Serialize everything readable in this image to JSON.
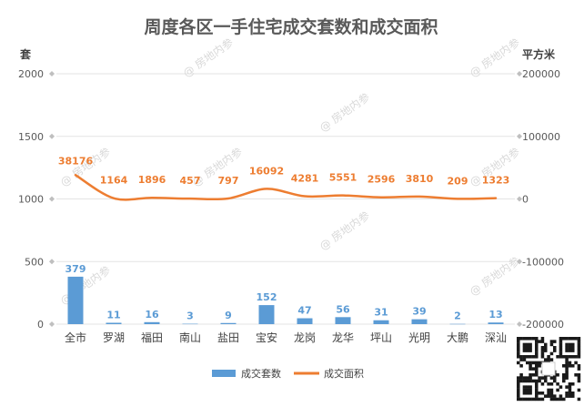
{
  "chart_data": {
    "type": "bar",
    "title": "周度各区一手住宅成交套数和成交面积",
    "categories": [
      "全市",
      "罗湖",
      "福田",
      "南山",
      "盐田",
      "宝安",
      "龙岗",
      "龙华",
      "坪山",
      "光明",
      "大鹏",
      "深汕"
    ],
    "series": [
      {
        "name": "成交套数",
        "type": "bar",
        "axis": "left",
        "color": "#5b9bd5",
        "values": [
          379,
          11,
          16,
          3,
          9,
          152,
          47,
          56,
          31,
          39,
          2,
          13
        ]
      },
      {
        "name": "成交面积",
        "type": "line",
        "axis": "right",
        "color": "#ed7d31",
        "values": [
          38176,
          1164,
          1896,
          457,
          797,
          16092,
          4281,
          5551,
          2596,
          3810,
          209,
          1323
        ]
      }
    ],
    "y_left": {
      "unit": "套",
      "ylim": [
        0,
        2000
      ],
      "ticks": [
        0,
        500,
        1000,
        1500,
        2000
      ]
    },
    "y_right": {
      "unit": "平方米",
      "ylim": [
        -200000,
        200000
      ],
      "ticks": [
        -200000,
        -100000,
        0,
        100000,
        200000
      ]
    },
    "grid": true,
    "legend": "bottom"
  },
  "watermark": {
    "text": "房地内参"
  },
  "qr": {
    "icon": "qr-code-icon"
  }
}
